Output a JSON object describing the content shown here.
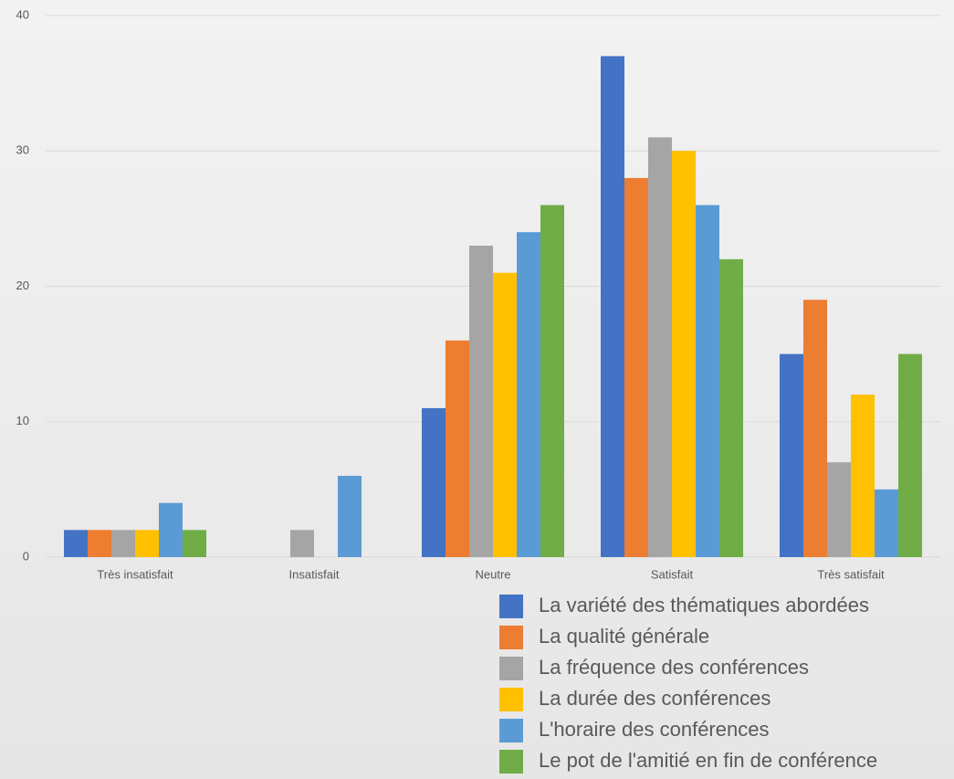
{
  "chart_data": {
    "type": "bar",
    "categories": [
      "Très insatisfait",
      "Insatisfait",
      "Neutre",
      "Satisfait",
      "Très satisfait"
    ],
    "series": [
      {
        "name": "La variété des thématiques abordées",
        "color": "#4472c4",
        "values": [
          2,
          0,
          11,
          37,
          15
        ]
      },
      {
        "name": "La qualité générale",
        "color": "#ed7d31",
        "values": [
          2,
          0,
          16,
          28,
          19
        ]
      },
      {
        "name": "La fréquence des conférences",
        "color": "#a5a5a5",
        "values": [
          2,
          2,
          23,
          31,
          7
        ]
      },
      {
        "name": "La durée des conférences",
        "color": "#ffc000",
        "values": [
          2,
          0,
          21,
          30,
          12
        ]
      },
      {
        "name": "L'horaire des conférences",
        "color": "#5b9bd5",
        "values": [
          4,
          6,
          24,
          26,
          5
        ]
      },
      {
        "name": "Le pot de l'amitié en fin de conférence",
        "color": "#70ad47",
        "values": [
          2,
          0,
          26,
          22,
          15
        ]
      }
    ],
    "ylim": [
      0,
      40
    ],
    "yticks": [
      0,
      10,
      20,
      30,
      40
    ],
    "grid": true,
    "legend": "bottom-right"
  }
}
